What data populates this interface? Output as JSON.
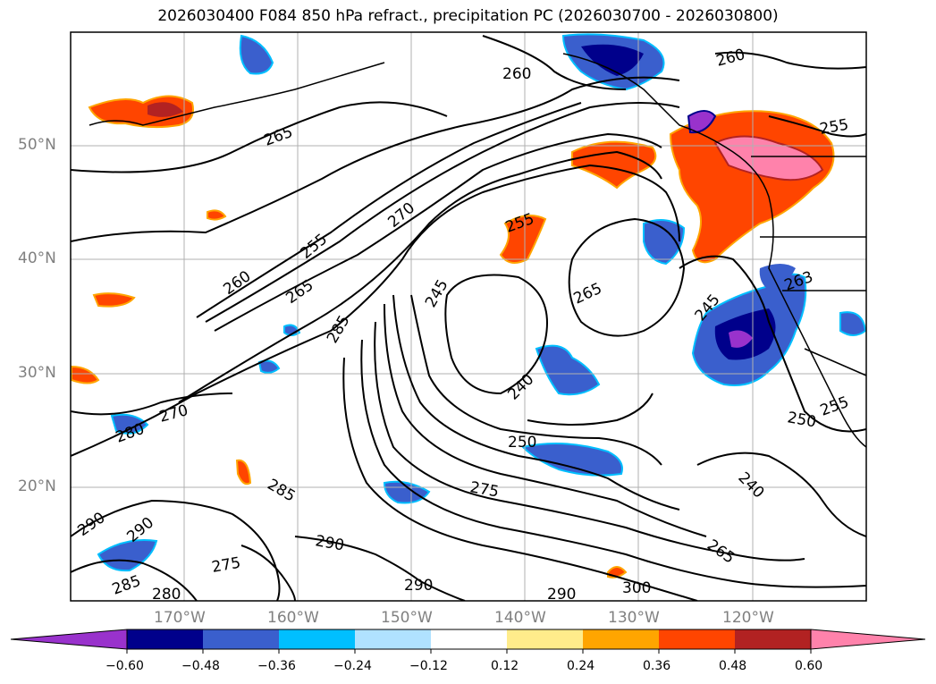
{
  "title": "2026030400 F084 850 hPa refract., precipitation PC (2026030700 - 2026030800)",
  "map": {
    "lat_labels": [
      "50°N",
      "40°N",
      "30°N",
      "20°N"
    ],
    "lon_labels": [
      "170°W",
      "160°W",
      "150°W",
      "140°W",
      "130°W",
      "120°W"
    ],
    "contour_labels": [
      "260",
      "260",
      "265",
      "255",
      "270",
      "255",
      "260",
      "265",
      "245",
      "265",
      "255",
      "285",
      "245",
      "240",
      "270",
      "250",
      "280",
      "285",
      "275",
      "240",
      "290",
      "290",
      "290",
      "275",
      "285",
      "280",
      "290",
      "265",
      "300",
      "290",
      "250",
      "255",
      "263"
    ]
  },
  "colorbar": {
    "ticks": [
      "−0.60",
      "−0.48",
      "−0.36",
      "−0.24",
      "−0.12",
      "0.12",
      "0.24",
      "0.36",
      "0.48",
      "0.60"
    ],
    "colors": [
      "#9932cc",
      "#00008b",
      "#3a5fcd",
      "#00bfff",
      "#b0e2ff",
      "#ffffff",
      "#ffec8b",
      "#ffa500",
      "#ff4500",
      "#b22222",
      "#ff82ab"
    ]
  }
}
